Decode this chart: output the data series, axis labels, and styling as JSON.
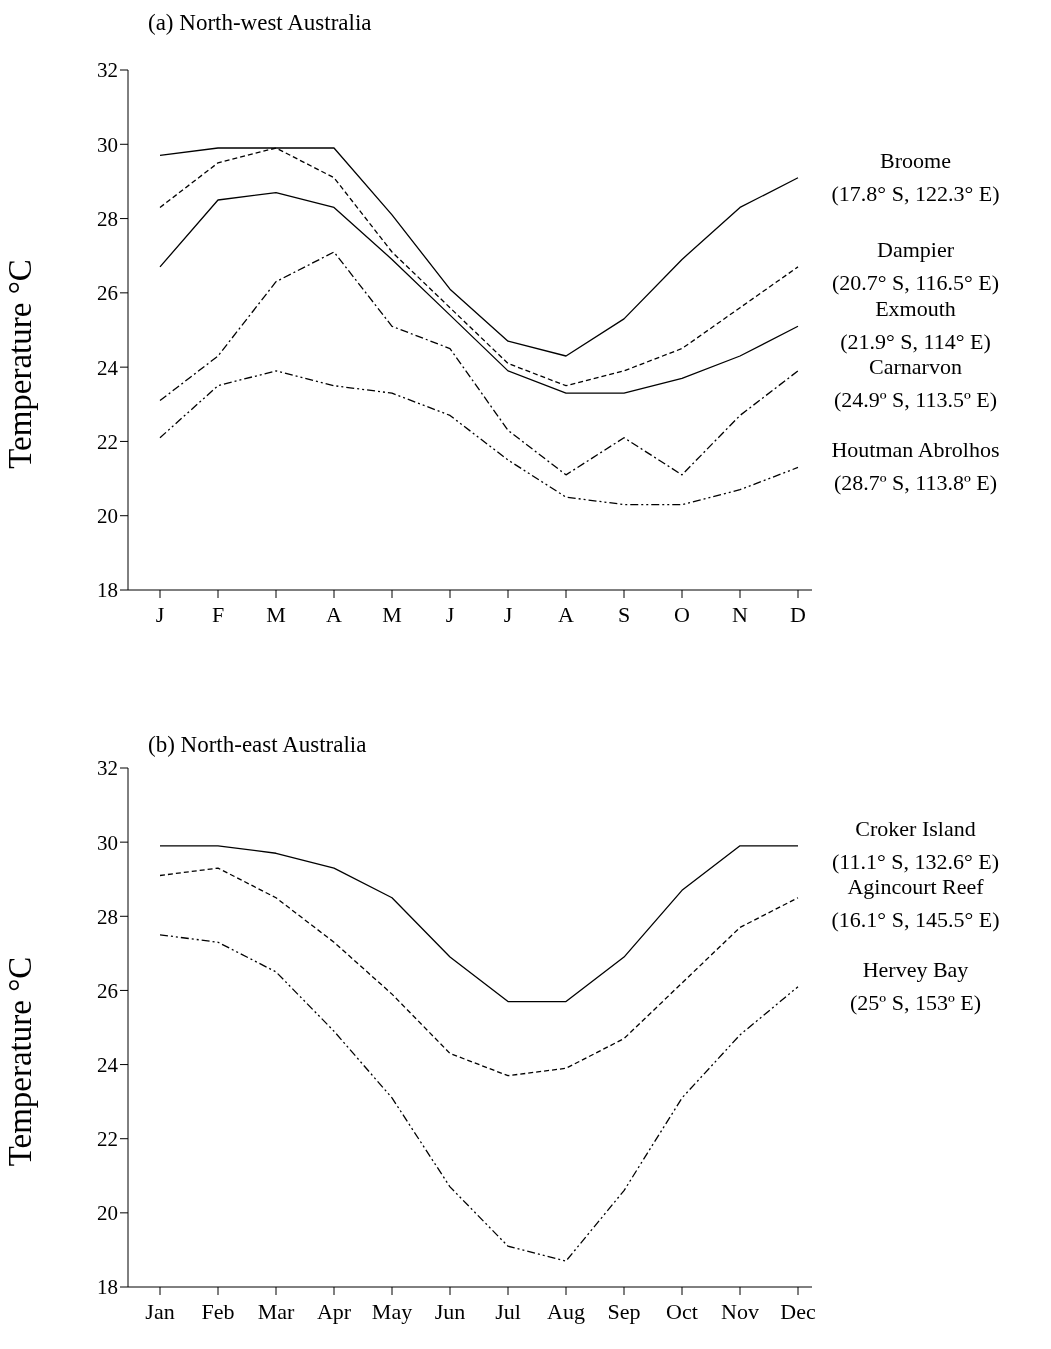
{
  "chart_data": [
    {
      "type": "line",
      "title": "(a) North-west Australia",
      "ylabel": "Temperature  °C",
      "categories": [
        "J",
        "F",
        "M",
        "A",
        "M",
        "J",
        "J",
        "A",
        "S",
        "O",
        "N",
        "D"
      ],
      "ylim": [
        18,
        32
      ],
      "yticks": [
        18,
        20,
        22,
        24,
        26,
        28,
        30,
        32
      ],
      "grid": false,
      "marker": "none",
      "series": [
        {
          "name": "Broome (17.8° S, 122.3° E)",
          "color": "#000000",
          "line_style": "solid",
          "values": [
            29.7,
            29.9,
            29.9,
            29.9,
            28.1,
            26.1,
            24.7,
            24.3,
            25.3,
            26.9,
            28.3,
            29.1
          ]
        },
        {
          "name": "Dampier (20.7° S, 116.5° E)",
          "color": "#000000",
          "line_style": "dashed",
          "values": [
            28.3,
            29.5,
            29.9,
            29.1,
            27.1,
            25.6,
            24.1,
            23.5,
            23.9,
            24.5,
            25.6,
            26.7
          ]
        },
        {
          "name": "Exmouth (21.9° S, 114° E)",
          "color": "#000000",
          "line_style": "solid",
          "values": [
            26.7,
            28.5,
            28.7,
            28.3,
            26.9,
            25.4,
            23.9,
            23.3,
            23.3,
            23.7,
            24.3,
            25.1
          ]
        },
        {
          "name": "Carnarvon (24.9º S, 113.5º E)",
          "color": "#000000",
          "line_style": "dashdot",
          "values": [
            23.1,
            24.3,
            26.3,
            27.1,
            25.1,
            24.5,
            22.3,
            21.1,
            22.1,
            21.1,
            22.7,
            23.9
          ]
        },
        {
          "name": "Houtman Abrolhos (28.7º S, 113.8º E)",
          "color": "#000000",
          "line_style": "dashdotdot",
          "values": [
            22.1,
            23.5,
            23.9,
            23.5,
            23.3,
            22.7,
            21.5,
            20.5,
            20.3,
            20.3,
            20.7,
            21.3
          ]
        }
      ]
    },
    {
      "type": "line",
      "title": "(b) North-east Australia",
      "ylabel": "Temperature  °C",
      "categories": [
        "Jan",
        "Feb",
        "Mar",
        "Apr",
        "May",
        "Jun",
        "Jul",
        "Aug",
        "Sep",
        "Oct",
        "Nov",
        "Dec"
      ],
      "ylim": [
        18,
        32
      ],
      "yticks": [
        18,
        20,
        22,
        24,
        26,
        28,
        30,
        32
      ],
      "grid": false,
      "marker": "none",
      "series": [
        {
          "name": "Croker Island (11.1° S, 132.6° E)",
          "color": "#000000",
          "line_style": "solid",
          "values": [
            29.9,
            29.9,
            29.7,
            29.3,
            28.5,
            26.9,
            25.7,
            25.7,
            26.9,
            28.7,
            29.9,
            29.9
          ]
        },
        {
          "name": "Agincourt Reef (16.1° S, 145.5° E)",
          "color": "#000000",
          "line_style": "dashed",
          "values": [
            29.1,
            29.3,
            28.5,
            27.3,
            25.9,
            24.3,
            23.7,
            23.9,
            24.7,
            26.2,
            27.7,
            28.5
          ]
        },
        {
          "name": "Hervey Bay (25º S, 153º E)",
          "color": "#000000",
          "line_style": "dashdotdot",
          "values": [
            27.5,
            27.3,
            26.5,
            24.9,
            23.1,
            20.7,
            19.1,
            18.7,
            20.6,
            23.1,
            24.8,
            26.1
          ]
        }
      ]
    }
  ]
}
